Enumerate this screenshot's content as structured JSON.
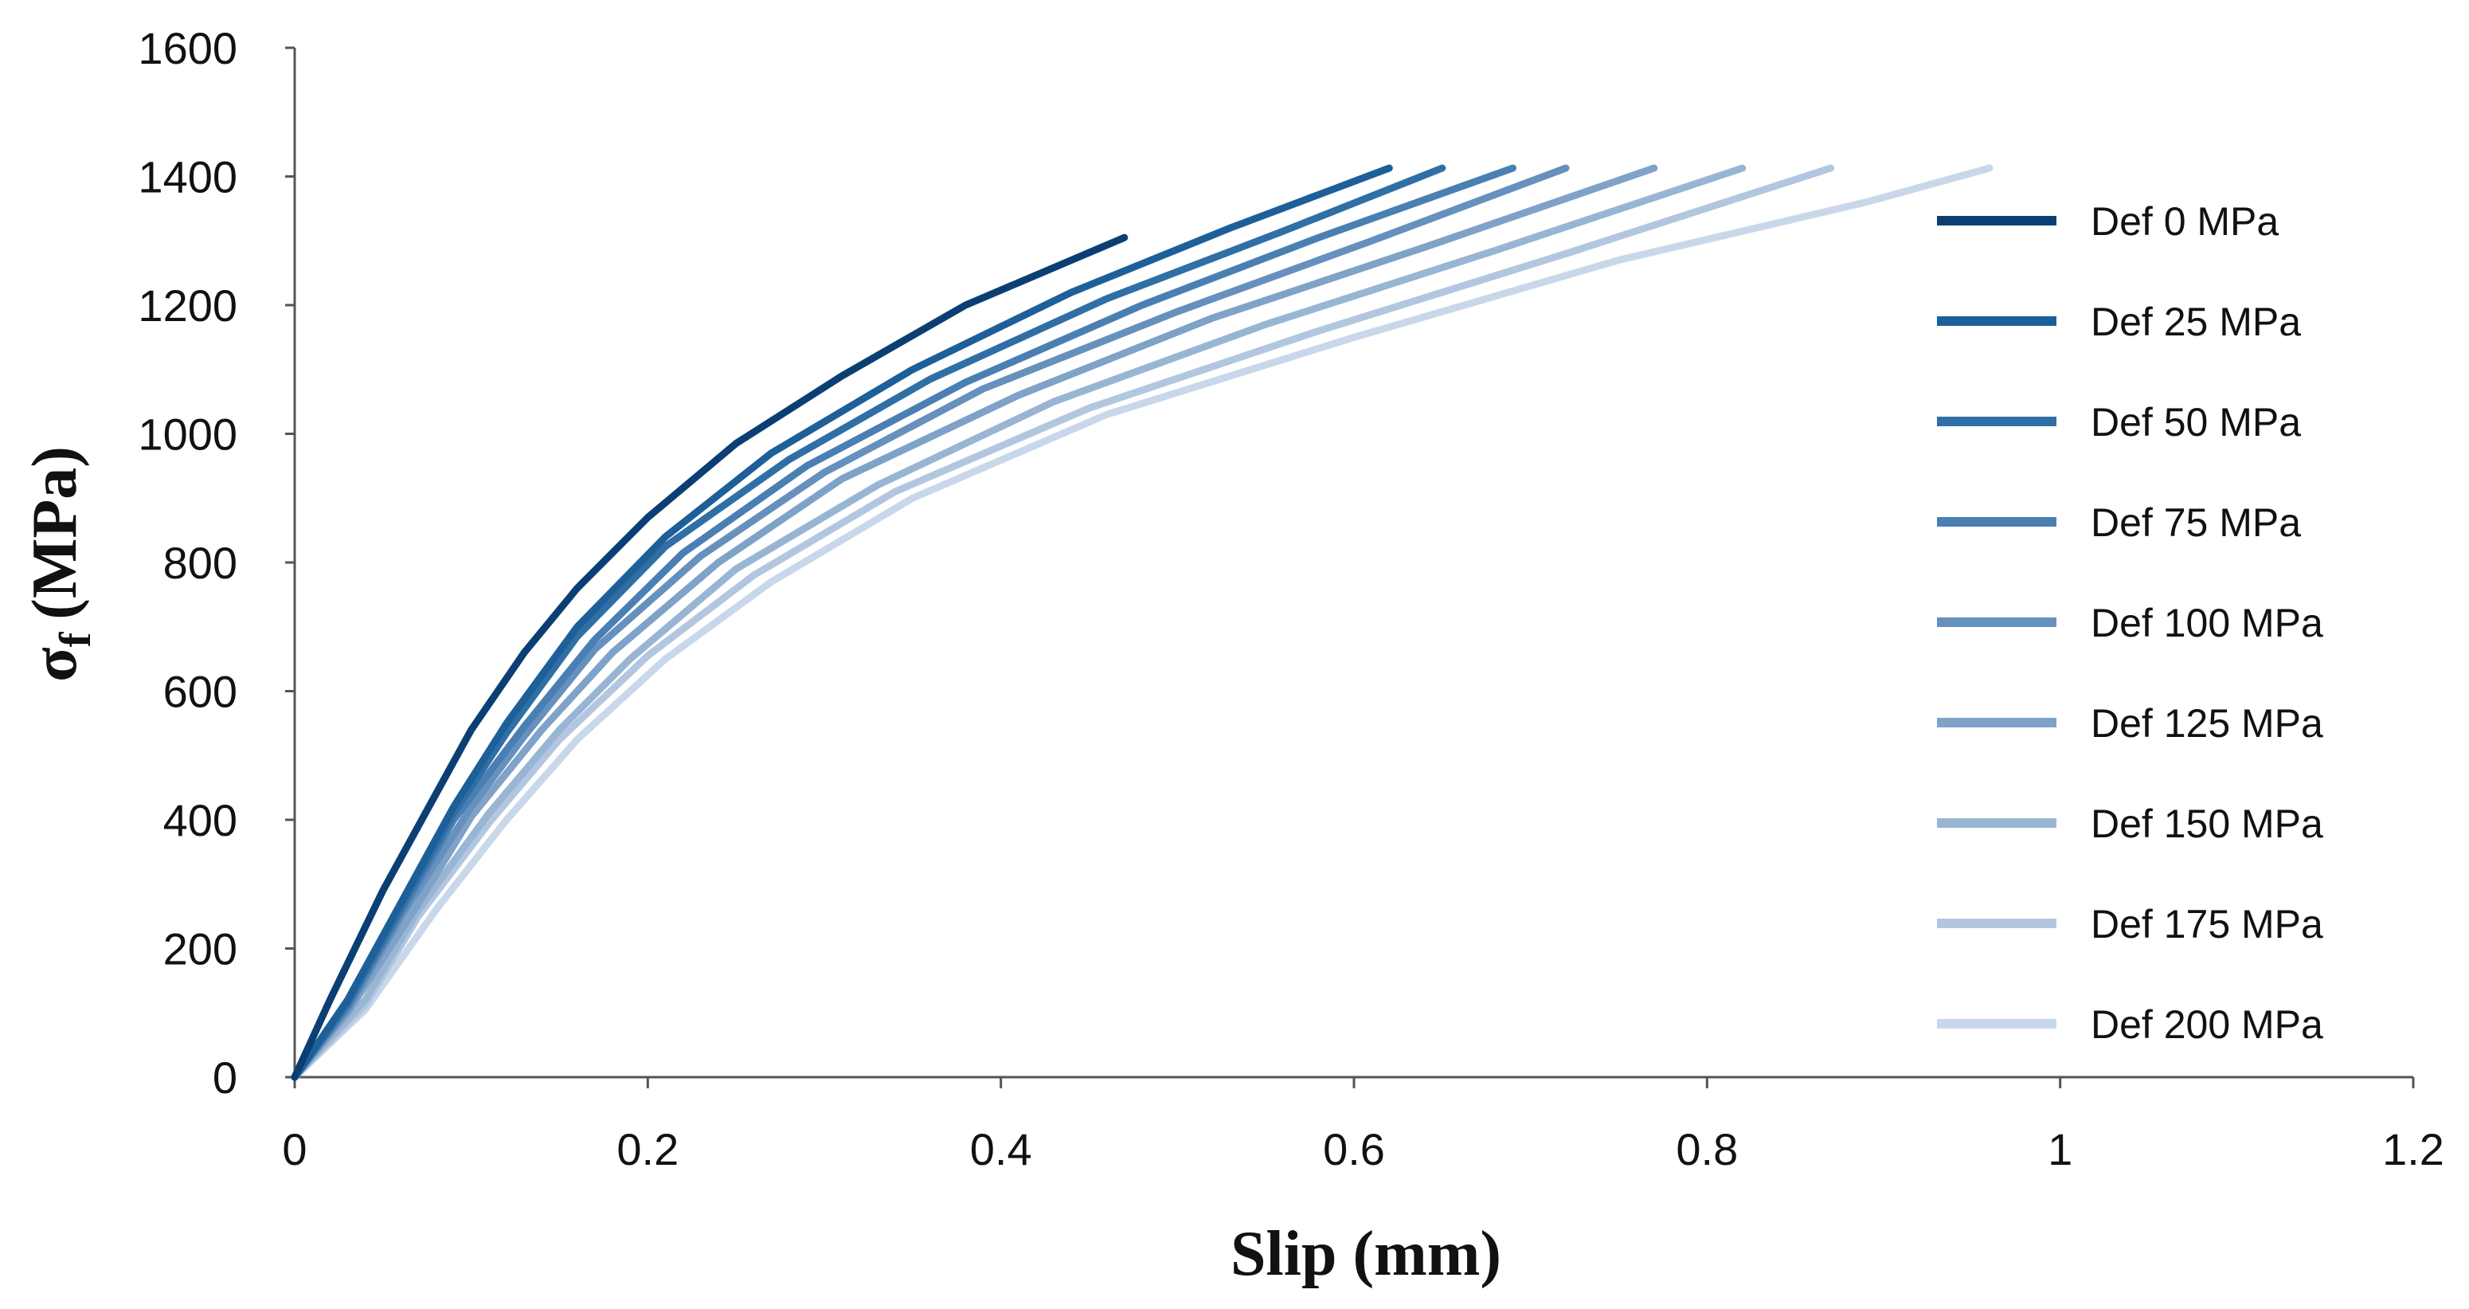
{
  "chart_data": {
    "type": "line",
    "title": "",
    "xlabel": "Slip (mm)",
    "ylabel": "σ",
    "ylabel_subscript": "f",
    "ylabel_unit": "(MPa)",
    "xlim": [
      0,
      1.2
    ],
    "ylim": [
      0,
      1600
    ],
    "xticks": [
      "0",
      "0.2",
      "0.4",
      "0.6",
      "0.8",
      "1",
      "1.2"
    ],
    "yticks": [
      "0",
      "200",
      "400",
      "600",
      "800",
      "1000",
      "1200",
      "1400",
      "1600"
    ],
    "grid": false,
    "legend_position": "right",
    "series": [
      {
        "name": "Def 0 MPa",
        "color": "#0b3f73",
        "x": [
          0,
          0.02,
          0.05,
          0.08,
          0.1,
          0.13,
          0.16,
          0.2,
          0.25,
          0.31,
          0.38,
          0.47
        ],
        "y": [
          0,
          120,
          290,
          440,
          540,
          660,
          760,
          870,
          985,
          1090,
          1200,
          1305
        ]
      },
      {
        "name": "Def 25 MPa",
        "color": "#1d5f99",
        "x": [
          0,
          0.03,
          0.06,
          0.09,
          0.12,
          0.16,
          0.21,
          0.27,
          0.35,
          0.44,
          0.53,
          0.62
        ],
        "y": [
          0,
          120,
          270,
          420,
          550,
          700,
          840,
          970,
          1100,
          1220,
          1320,
          1413
        ]
      },
      {
        "name": "Def 50 MPa",
        "color": "#2f6fa6",
        "x": [
          0,
          0.03,
          0.06,
          0.09,
          0.12,
          0.16,
          0.21,
          0.28,
          0.36,
          0.46,
          0.56,
          0.65
        ],
        "y": [
          0,
          115,
          262,
          410,
          535,
          685,
          825,
          960,
          1085,
          1210,
          1315,
          1413
        ]
      },
      {
        "name": "Def 75 MPa",
        "color": "#4a7fb3",
        "x": [
          0,
          0.03,
          0.06,
          0.09,
          0.13,
          0.17,
          0.22,
          0.29,
          0.38,
          0.48,
          0.58,
          0.69
        ],
        "y": [
          0,
          110,
          255,
          400,
          545,
          680,
          815,
          950,
          1080,
          1200,
          1305,
          1413
        ]
      },
      {
        "name": "Def 100 MPa",
        "color": "#6690bd",
        "x": [
          0,
          0.03,
          0.06,
          0.1,
          0.13,
          0.17,
          0.23,
          0.3,
          0.39,
          0.5,
          0.61,
          0.72
        ],
        "y": [
          0,
          105,
          248,
          420,
          530,
          665,
          810,
          940,
          1070,
          1190,
          1300,
          1413
        ]
      },
      {
        "name": "Def 125 MPa",
        "color": "#7ea2c8",
        "x": [
          0,
          0.03,
          0.07,
          0.1,
          0.14,
          0.18,
          0.24,
          0.31,
          0.41,
          0.52,
          0.64,
          0.77
        ],
        "y": [
          0,
          100,
          270,
          405,
          540,
          660,
          800,
          930,
          1060,
          1180,
          1290,
          1413
        ]
      },
      {
        "name": "Def 150 MPa",
        "color": "#98b5d4",
        "x": [
          0,
          0.04,
          0.07,
          0.11,
          0.15,
          0.19,
          0.25,
          0.33,
          0.43,
          0.55,
          0.68,
          0.82
        ],
        "y": [
          0,
          120,
          260,
          410,
          540,
          650,
          790,
          920,
          1050,
          1170,
          1285,
          1413
        ]
      },
      {
        "name": "Def 175 MPa",
        "color": "#b2c7df",
        "x": [
          0,
          0.04,
          0.07,
          0.11,
          0.15,
          0.2,
          0.26,
          0.34,
          0.45,
          0.58,
          0.72,
          0.87
        ],
        "y": [
          0,
          112,
          250,
          395,
          525,
          655,
          780,
          910,
          1040,
          1160,
          1280,
          1413
        ]
      },
      {
        "name": "Def 200 MPa",
        "color": "#c9d7ea",
        "x": [
          0,
          0.04,
          0.08,
          0.12,
          0.16,
          0.21,
          0.27,
          0.35,
          0.46,
          0.6,
          0.75,
          0.89,
          0.96
        ],
        "y": [
          0,
          105,
          260,
          400,
          525,
          650,
          770,
          900,
          1030,
          1150,
          1270,
          1360,
          1413
        ]
      }
    ]
  }
}
